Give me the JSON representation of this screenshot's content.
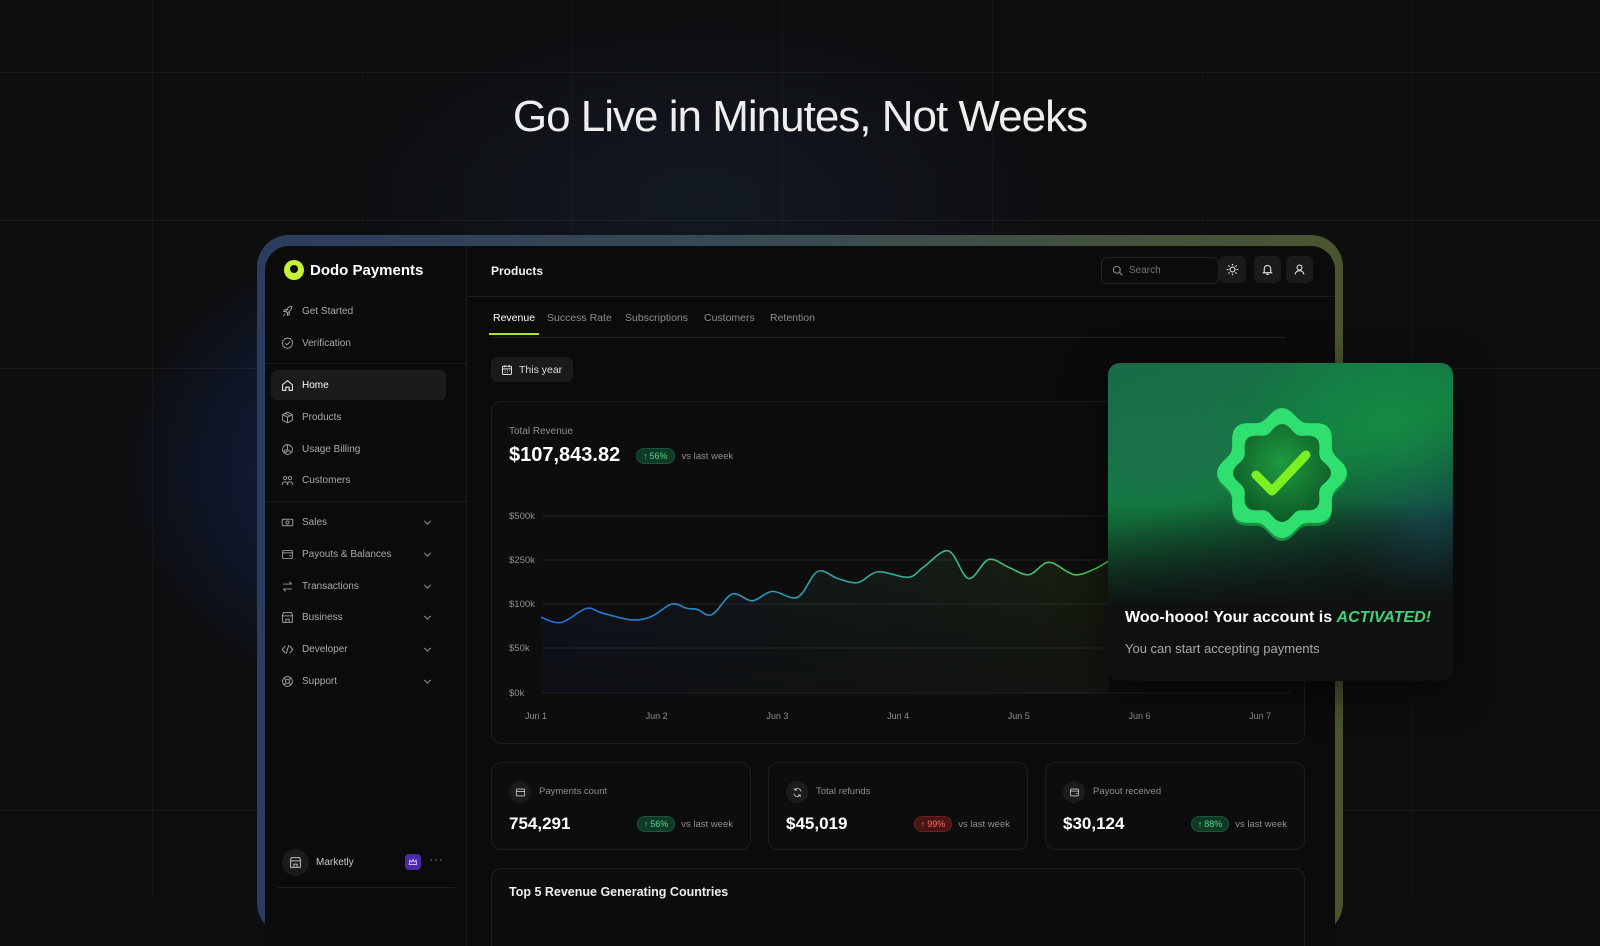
{
  "hero_title": "Go Live in Minutes, Not Weeks",
  "brand": {
    "name": "Dodo Payments",
    "accent": "#c6f432"
  },
  "sidebar": {
    "top_items": [
      {
        "label": "Get Started",
        "icon": "rocket-icon"
      },
      {
        "label": "Verification",
        "icon": "badge-check-icon"
      }
    ],
    "main_items": [
      {
        "label": "Home",
        "icon": "home-icon",
        "active": true
      },
      {
        "label": "Products",
        "icon": "box-icon"
      },
      {
        "label": "Usage Billing",
        "icon": "usage-icon"
      },
      {
        "label": "Customers",
        "icon": "users-icon"
      }
    ],
    "group_items": [
      {
        "label": "Sales",
        "icon": "money-icon"
      },
      {
        "label": "Payouts & Balances",
        "icon": "wallet-icon"
      },
      {
        "label": "Transactions",
        "icon": "arrows-icon"
      },
      {
        "label": "Business",
        "icon": "store-icon"
      },
      {
        "label": "Developer",
        "icon": "code-icon"
      },
      {
        "label": "Support",
        "icon": "lifebuoy-icon"
      }
    ],
    "workspace": {
      "name": "Marketly",
      "badge_icon": "crown-icon",
      "badge_color": "#4b2aa8"
    }
  },
  "header": {
    "title": "Products",
    "search_placeholder": "Search"
  },
  "tabs": [
    {
      "label": "Revenue",
      "active": true
    },
    {
      "label": "Success Rate"
    },
    {
      "label": "Subscriptions"
    },
    {
      "label": "Customers"
    },
    {
      "label": "Retention"
    }
  ],
  "date_filter": "This year",
  "revenue": {
    "label": "Total Revenue",
    "amount": "$107,843.82",
    "change": "56%",
    "change_dir": "up",
    "compare": "vs last week"
  },
  "chart_data": {
    "type": "area",
    "yticks": [
      "$500k",
      "$250k",
      "$100k",
      "$50k",
      "$0k"
    ],
    "ytick_values": [
      500,
      250,
      100,
      50,
      0
    ],
    "xticks": [
      "Jun 1",
      "Jun 2",
      "Jun 3",
      "Jun 4",
      "Jun 5",
      "Jun 6",
      "Jun 7"
    ],
    "y_unit": "$k",
    "grid": true,
    "line_colors": [
      "#1f6fe8",
      "#4cd05a"
    ],
    "points": [
      {
        "t": "Jun 1 01:00",
        "v": 85
      },
      {
        "t": "Jun 1 05:00",
        "v": 79
      },
      {
        "t": "Jun 1 10:00",
        "v": 95
      },
      {
        "t": "Jun 1 13:00",
        "v": 90
      },
      {
        "t": "Jun 1 19:00",
        "v": 82
      },
      {
        "t": "Jun 1 23:00",
        "v": 86
      },
      {
        "t": "Jun 2 03:00",
        "v": 100
      },
      {
        "t": "Jun 2 06:00",
        "v": 95
      },
      {
        "t": "Jun 2 08:00",
        "v": 94
      },
      {
        "t": "Jun 2 11:00",
        "v": 88
      },
      {
        "t": "Jun 2 15:00",
        "v": 134
      },
      {
        "t": "Jun 2 19:00",
        "v": 111
      },
      {
        "t": "Jun 2 23:00",
        "v": 143
      },
      {
        "t": "Jun 3 04:00",
        "v": 123
      },
      {
        "t": "Jun 3 08:00",
        "v": 211
      },
      {
        "t": "Jun 3 12:00",
        "v": 187
      },
      {
        "t": "Jun 3 16:00",
        "v": 173
      },
      {
        "t": "Jun 3 20:00",
        "v": 210
      },
      {
        "t": "Jun 4 02:00",
        "v": 191
      },
      {
        "t": "Jun 4 05:00",
        "v": 225
      },
      {
        "t": "Jun 4 10:00",
        "v": 302
      },
      {
        "t": "Jun 4 14:00",
        "v": 187
      },
      {
        "t": "Jun 4 18:00",
        "v": 253
      },
      {
        "t": "Jun 4 22:00",
        "v": 225
      },
      {
        "t": "Jun 5 02:00",
        "v": 200
      },
      {
        "t": "Jun 5 06:00",
        "v": 242
      },
      {
        "t": "Jun 5 11:00",
        "v": 200
      },
      {
        "t": "Jun 5 15:00",
        "v": 219
      },
      {
        "t": "Jun 5 18:00",
        "v": 248
      }
    ]
  },
  "stats": [
    {
      "label": "Payments count",
      "value": "754,291",
      "change": "56%",
      "dir": "up",
      "compare": "vs last week",
      "icon": "card-icon"
    },
    {
      "label": "Total refunds",
      "value": "$45,019",
      "change": "99%",
      "dir": "down",
      "compare": "vs last week",
      "icon": "refresh-icon"
    },
    {
      "label": "Payout received",
      "value": "$30,124",
      "change": "88%",
      "dir": "up",
      "compare": "vs last week",
      "icon": "wallet-icon"
    }
  ],
  "countries_title": "Top 5 Revenue Generating Countries",
  "toast": {
    "title_prefix": "Woo-hooo! Your account is ",
    "title_highlight": "ACTIVATED!",
    "subtitle": "You can start accepting payments",
    "highlight_color": "#3fd37a",
    "icon": "verified-badge-icon"
  }
}
